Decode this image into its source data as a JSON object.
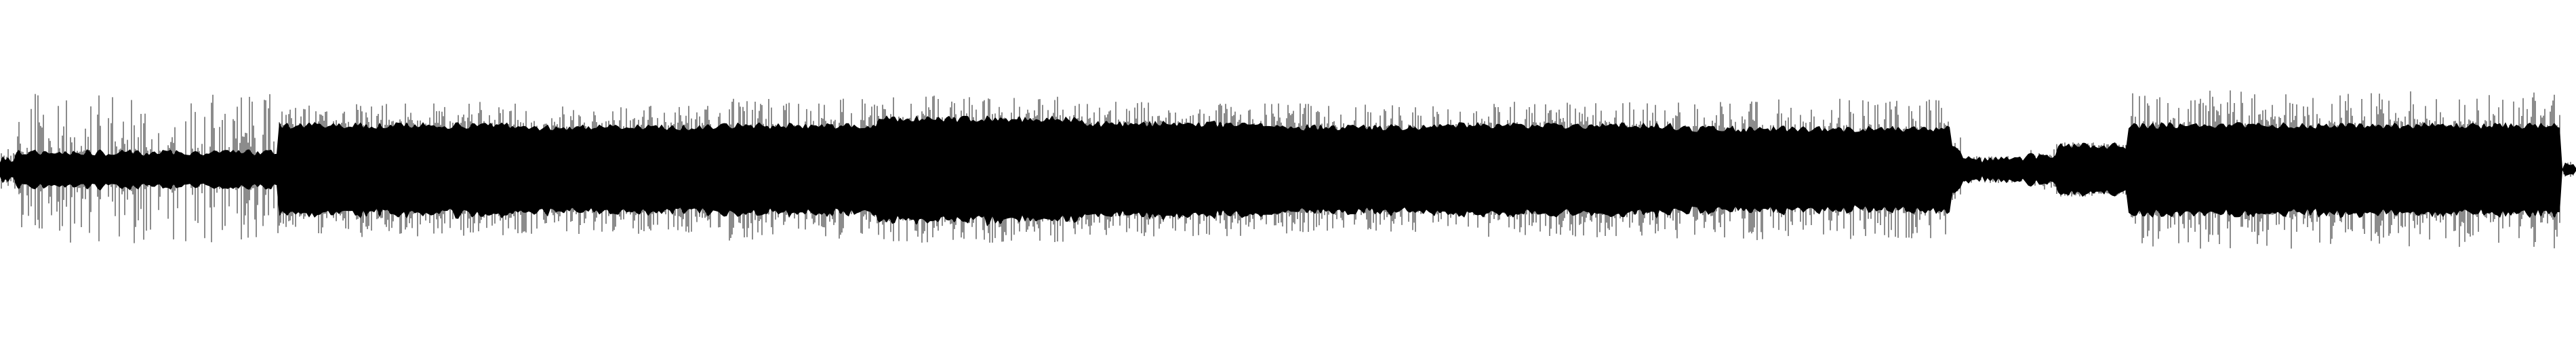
{
  "waveform": {
    "background_color": "#ffffff",
    "wave_color": "#000000",
    "mirrored": true,
    "segments": [
      {
        "start": 0.0,
        "end": 0.006,
        "body": 0.06,
        "peak": 0.12
      },
      {
        "start": 0.006,
        "end": 0.108,
        "body": 0.1,
        "peak": 0.45
      },
      {
        "start": 0.108,
        "end": 0.2,
        "body": 0.26,
        "peak": 0.4
      },
      {
        "start": 0.2,
        "end": 0.28,
        "body": 0.25,
        "peak": 0.38
      },
      {
        "start": 0.28,
        "end": 0.34,
        "body": 0.26,
        "peak": 0.42
      },
      {
        "start": 0.34,
        "end": 0.42,
        "body": 0.3,
        "peak": 0.44
      },
      {
        "start": 0.42,
        "end": 0.492,
        "body": 0.27,
        "peak": 0.4
      },
      {
        "start": 0.492,
        "end": 0.56,
        "body": 0.25,
        "peak": 0.39
      },
      {
        "start": 0.56,
        "end": 0.65,
        "body": 0.26,
        "peak": 0.4
      },
      {
        "start": 0.65,
        "end": 0.757,
        "body": 0.24,
        "peak": 0.42
      },
      {
        "start": 0.757,
        "end": 0.762,
        "body": 0.12,
        "peak": 0.2
      },
      {
        "start": 0.762,
        "end": 0.786,
        "body": 0.06,
        "peak": 0.08
      },
      {
        "start": 0.786,
        "end": 0.798,
        "body": 0.08,
        "peak": 0.12
      },
      {
        "start": 0.798,
        "end": 0.826,
        "body": 0.14,
        "peak": 0.16
      },
      {
        "start": 0.826,
        "end": 0.994,
        "body": 0.26,
        "peak": 0.47
      },
      {
        "start": 0.994,
        "end": 1.0,
        "body": 0.02,
        "peak": 0.05
      }
    ]
  }
}
